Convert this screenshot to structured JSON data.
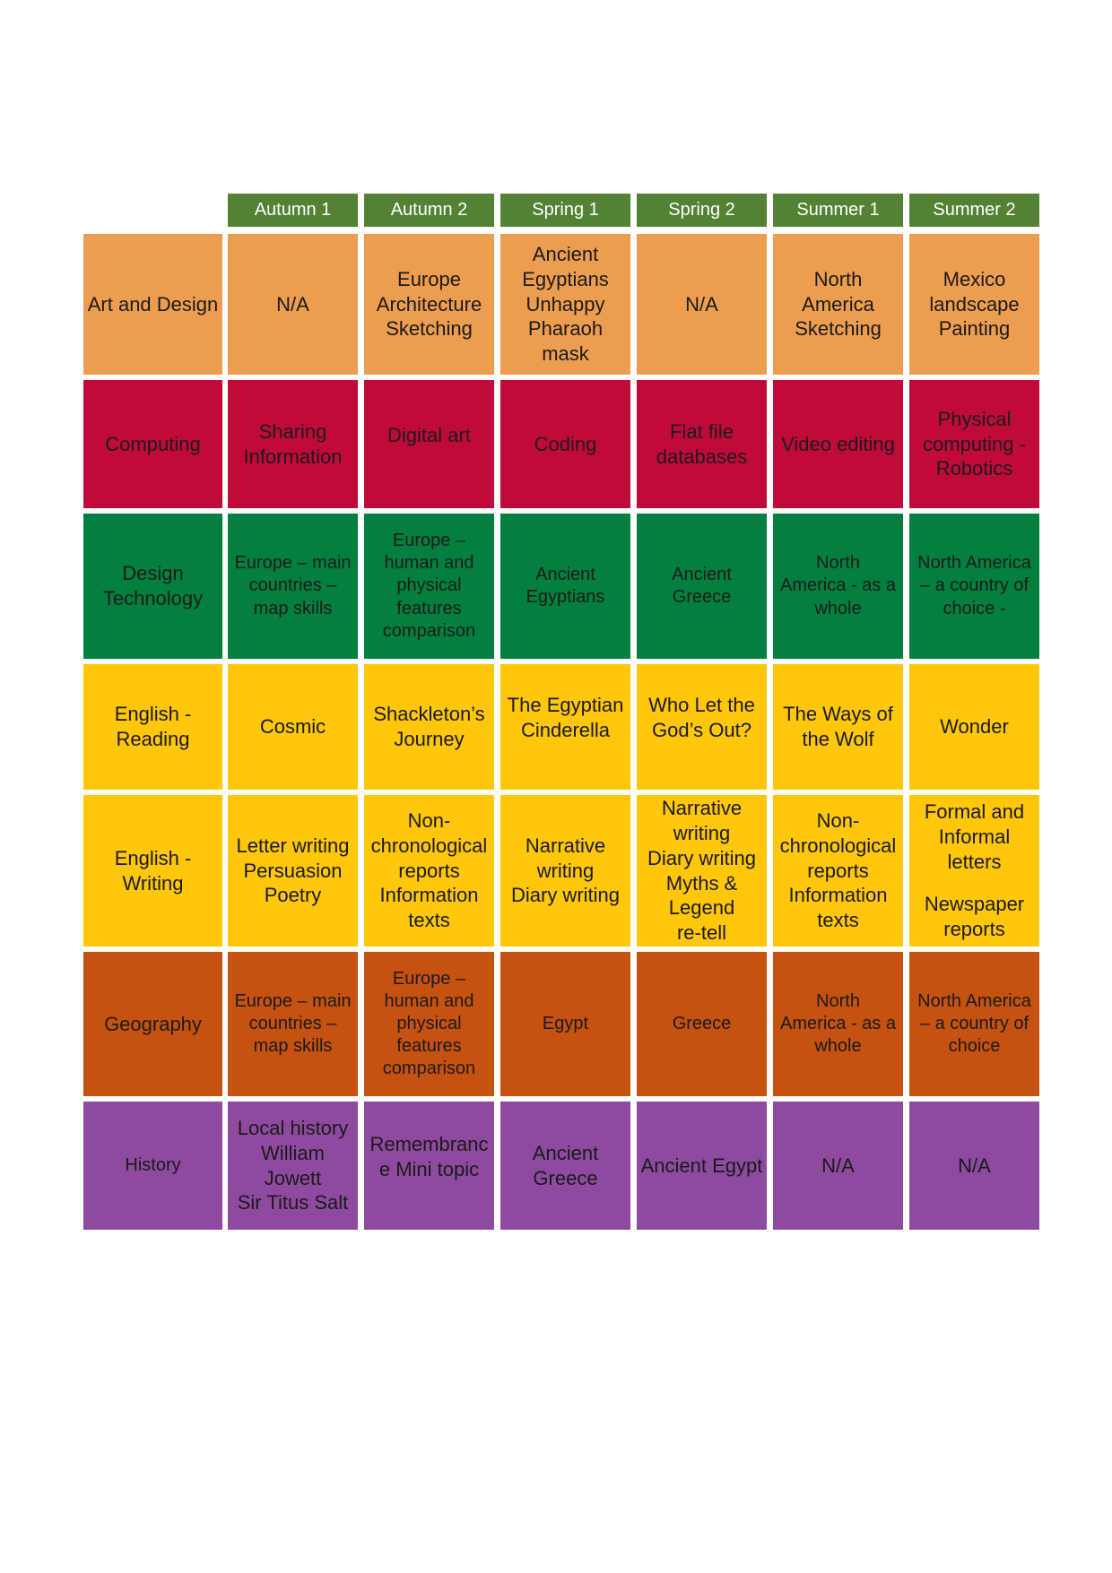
{
  "headers": [
    "Autumn 1",
    "Autumn 2",
    "Spring 1",
    "Spring 2",
    "Summer 1",
    "Summer 2"
  ],
  "colors": {
    "header": "#548235",
    "art": "#ED9D4F",
    "computing": "#C00B3A",
    "design": "#03803F",
    "english": "#FFC60A",
    "geography": "#C55210",
    "history": "#8E4A9F"
  },
  "rows": [
    {
      "subject": [
        "Art and Design"
      ],
      "color": "art",
      "cells": [
        [
          "N/A"
        ],
        [
          "Europe",
          "Architecture",
          "Sketching"
        ],
        [
          "Ancient",
          "Egyptians",
          "Unhappy",
          "Pharaoh",
          "mask"
        ],
        [
          "N/A"
        ],
        [
          "North",
          "America",
          "Sketching"
        ],
        [
          "Mexico",
          "landscape",
          "Painting"
        ]
      ]
    },
    {
      "subject": [
        "Computing"
      ],
      "color": "computing",
      "cells": [
        [
          "Sharing",
          "Information"
        ],
        [
          "Digital art",
          ""
        ],
        [
          "Coding"
        ],
        [
          "Flat file",
          "databases"
        ],
        [
          "Video editing"
        ],
        [
          "Physical",
          "computing -",
          "Robotics"
        ]
      ]
    },
    {
      "subject": [
        "Design",
        "Technology"
      ],
      "color": "design",
      "cells": [
        [
          "Europe – main",
          "countries –",
          "map skills"
        ],
        [
          "Europe –",
          "human and",
          "physical",
          "features",
          "comparison"
        ],
        [
          "Ancient",
          "Egyptians"
        ],
        [
          "Ancient",
          "Greece"
        ],
        [
          "North",
          "America - as a",
          "whole"
        ],
        [
          "North America",
          "– a country of",
          "choice -"
        ]
      ]
    },
    {
      "subject": [
        "English -",
        "Reading"
      ],
      "color": "english",
      "cells": [
        [
          "Cosmic"
        ],
        [
          "Shackleton’s",
          "Journey"
        ],
        [
          "The Egyptian",
          "Cinderella",
          ""
        ],
        [
          "Who Let the",
          "God’s Out?",
          ""
        ],
        [
          "The Ways of",
          "the Wolf"
        ],
        [
          "Wonder"
        ]
      ]
    },
    {
      "subject": [
        "English -",
        "Writing"
      ],
      "color": "english",
      "cells": [
        [
          "Letter writing",
          "Persuasion",
          "Poetry"
        ],
        [
          "Non-",
          "chronological",
          "reports",
          "Information",
          "texts"
        ],
        [
          "Narrative",
          "writing",
          "Diary writing"
        ],
        [
          "Narrative",
          "writing",
          "Diary writing",
          "Myths &",
          "Legend",
          "re-tell"
        ],
        [
          "Non-",
          "chronological",
          "reports",
          "Information",
          "texts"
        ],
        [
          "Formal and",
          "Informal",
          "letters",
          "",
          "Newspaper",
          "reports"
        ]
      ]
    },
    {
      "subject": [
        "Geography"
      ],
      "color": "geography",
      "cells": [
        [
          "Europe – main",
          "countries –",
          "map skills"
        ],
        [
          "Europe –",
          "human and",
          "physical",
          "features",
          "comparison"
        ],
        [
          "Egypt"
        ],
        [
          "Greece"
        ],
        [
          "North",
          "America - as a",
          "whole"
        ],
        [
          "North America",
          "– a country of",
          "choice"
        ]
      ]
    },
    {
      "subject": [
        "History"
      ],
      "color": "history",
      "cells": [
        [
          "Local history",
          "William",
          "Jowett",
          "Sir Titus Salt"
        ],
        [
          "Remembranc",
          "e Mini topic",
          ""
        ],
        [
          "Ancient",
          "Greece"
        ],
        [
          "Ancient Egypt"
        ],
        [
          "N/A"
        ],
        [
          "N/A"
        ]
      ]
    }
  ]
}
